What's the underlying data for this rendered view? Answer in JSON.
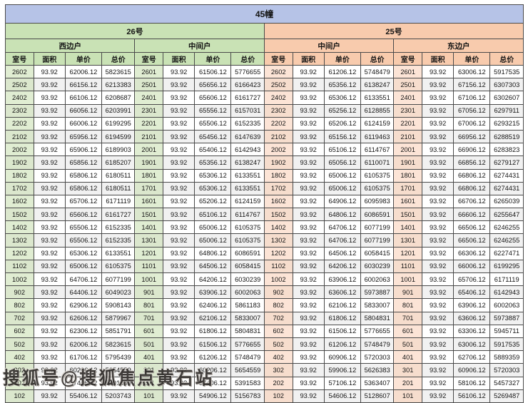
{
  "title": "45幢",
  "watermark": {
    "text": "搜狐号@搜狐焦点黄石站"
  },
  "buildings": [
    {
      "label": "26号",
      "theme": "green"
    },
    {
      "label": "25号",
      "theme": "orange"
    }
  ],
  "sides": [
    {
      "label": "西边户",
      "theme": "green"
    },
    {
      "label": "中间户",
      "theme": "green"
    },
    {
      "label": "中间户",
      "theme": "orange"
    },
    {
      "label": "东边户",
      "theme": "orange"
    }
  ],
  "columns": [
    "室号",
    "面积",
    "单价",
    "总价"
  ],
  "colors": {
    "title_bg": "#b6c3e7",
    "green_header": "#c9e2b5",
    "green_room": "#e0edd2",
    "orange_header": "#f8cbad",
    "orange_room": "#fce4d6",
    "stripe": "#f1f1f1",
    "border": "#4a4a4a"
  },
  "rows": [
    [
      "2602",
      "93.92",
      "62006.12",
      "5823615",
      "2601",
      "93.92",
      "61506.12",
      "5776655",
      "2602",
      "93.92",
      "61206.12",
      "5748479",
      "2601",
      "93.92",
      "63006.12",
      "5917535"
    ],
    [
      "2502",
      "93.92",
      "66156.12",
      "6213383",
      "2501",
      "93.92",
      "65656.12",
      "6166423",
      "2502",
      "93.92",
      "65356.12",
      "6138247",
      "2501",
      "93.92",
      "67156.12",
      "6307303"
    ],
    [
      "2402",
      "93.92",
      "66106.12",
      "6208687",
      "2401",
      "93.92",
      "65606.12",
      "6161727",
      "2402",
      "93.92",
      "65306.12",
      "6133551",
      "2401",
      "93.92",
      "67106.12",
      "6302607"
    ],
    [
      "2302",
      "93.92",
      "66056.12",
      "6203991",
      "2301",
      "93.92",
      "65556.12",
      "6157031",
      "2302",
      "93.92",
      "65256.12",
      "6128855",
      "2301",
      "93.92",
      "67056.12",
      "6297911"
    ],
    [
      "2202",
      "93.92",
      "66006.12",
      "6199295",
      "2201",
      "93.92",
      "65506.12",
      "6152335",
      "2202",
      "93.92",
      "65206.12",
      "6124159",
      "2201",
      "93.92",
      "67006.12",
      "6293215"
    ],
    [
      "2102",
      "93.92",
      "65956.12",
      "6194599",
      "2101",
      "93.92",
      "65456.12",
      "6147639",
      "2102",
      "93.92",
      "65156.12",
      "6119463",
      "2101",
      "93.92",
      "66956.12",
      "6288519"
    ],
    [
      "2002",
      "93.92",
      "65906.12",
      "6189903",
      "2001",
      "93.92",
      "65406.12",
      "6142943",
      "2002",
      "93.92",
      "65106.12",
      "6114767",
      "2001",
      "93.92",
      "66906.12",
      "6283823"
    ],
    [
      "1902",
      "93.92",
      "65856.12",
      "6185207",
      "1901",
      "93.92",
      "65356.12",
      "6138247",
      "1902",
      "93.92",
      "65056.12",
      "6110071",
      "1901",
      "93.92",
      "66856.12",
      "6279127"
    ],
    [
      "1802",
      "93.92",
      "65806.12",
      "6180511",
      "1801",
      "93.92",
      "65306.12",
      "6133551",
      "1802",
      "93.92",
      "65006.12",
      "6105375",
      "1801",
      "93.92",
      "66806.12",
      "6274431"
    ],
    [
      "1702",
      "93.92",
      "65806.12",
      "6180511",
      "1701",
      "93.92",
      "65306.12",
      "6133551",
      "1702",
      "93.92",
      "65006.12",
      "6105375",
      "1701",
      "93.92",
      "66806.12",
      "6274431"
    ],
    [
      "1602",
      "93.92",
      "65706.12",
      "6171119",
      "1601",
      "93.92",
      "65206.12",
      "6124159",
      "1602",
      "93.92",
      "64906.12",
      "6095983",
      "1601",
      "93.92",
      "66706.12",
      "6265039"
    ],
    [
      "1502",
      "93.92",
      "65606.12",
      "6161727",
      "1501",
      "93.92",
      "65106.12",
      "6114767",
      "1502",
      "93.92",
      "64806.12",
      "6086591",
      "1501",
      "93.92",
      "66606.12",
      "6255647"
    ],
    [
      "1402",
      "93.92",
      "65506.12",
      "6152335",
      "1401",
      "93.92",
      "65006.12",
      "6105375",
      "1402",
      "93.92",
      "64706.12",
      "6077199",
      "1401",
      "93.92",
      "66506.12",
      "6246255"
    ],
    [
      "1302",
      "93.92",
      "65506.12",
      "6152335",
      "1301",
      "93.92",
      "65006.12",
      "6105375",
      "1302",
      "93.92",
      "64706.12",
      "6077199",
      "1301",
      "93.92",
      "66506.12",
      "6246255"
    ],
    [
      "1202",
      "93.92",
      "65306.12",
      "6133551",
      "1201",
      "93.92",
      "64806.12",
      "6086591",
      "1202",
      "93.92",
      "64506.12",
      "6058415",
      "1201",
      "93.92",
      "66306.12",
      "6227471"
    ],
    [
      "1102",
      "93.92",
      "65006.12",
      "6105375",
      "1101",
      "93.92",
      "64506.12",
      "6058415",
      "1102",
      "93.92",
      "64206.12",
      "6030239",
      "1101",
      "93.92",
      "66006.12",
      "6199295"
    ],
    [
      "1002",
      "93.92",
      "64706.12",
      "6077199",
      "1001",
      "93.92",
      "64206.12",
      "6030239",
      "1002",
      "93.92",
      "63906.12",
      "6002063",
      "1001",
      "93.92",
      "65706.12",
      "6171119"
    ],
    [
      "902",
      "93.92",
      "64406.12",
      "6049023",
      "901",
      "93.92",
      "63906.12",
      "6002063",
      "902",
      "93.92",
      "63606.12",
      "5973887",
      "901",
      "93.92",
      "65406.12",
      "6142943"
    ],
    [
      "802",
      "93.92",
      "62906.12",
      "5908143",
      "801",
      "93.92",
      "62406.12",
      "5861183",
      "802",
      "93.92",
      "62106.12",
      "5833007",
      "801",
      "93.92",
      "63906.12",
      "6002063"
    ],
    [
      "702",
      "93.92",
      "62606.12",
      "5879967",
      "701",
      "93.92",
      "62106.12",
      "5833007",
      "702",
      "93.92",
      "61806.12",
      "5804831",
      "701",
      "93.92",
      "63606.12",
      "5973887"
    ],
    [
      "602",
      "93.92",
      "62306.12",
      "5851791",
      "601",
      "93.92",
      "61806.12",
      "5804831",
      "602",
      "93.92",
      "61506.12",
      "5776655",
      "601",
      "93.92",
      "63306.12",
      "5945711"
    ],
    [
      "502",
      "93.92",
      "62006.12",
      "5823615",
      "501",
      "93.92",
      "61506.12",
      "5776655",
      "502",
      "93.92",
      "61206.12",
      "5748479",
      "501",
      "93.92",
      "63006.12",
      "5917535"
    ],
    [
      "402",
      "93.92",
      "61706.12",
      "5795439",
      "401",
      "93.92",
      "61206.12",
      "5748479",
      "402",
      "93.92",
      "60906.12",
      "5720303",
      "401",
      "93.92",
      "62706.12",
      "5889359"
    ],
    [
      "302",
      "93.92",
      "60206.12",
      "5654559",
      "301",
      "93.92",
      "60206.12",
      "5654559",
      "302",
      "93.92",
      "59906.12",
      "5626383",
      "301",
      "93.92",
      "60906.12",
      "5720303"
    ],
    [
      "202",
      "93.92",
      "57406.12",
      "5391583",
      "201",
      "93.92",
      "57406.12",
      "5391583",
      "202",
      "93.92",
      "57106.12",
      "5363407",
      "201",
      "93.92",
      "58106.12",
      "5457327"
    ],
    [
      "102",
      "93.92",
      "55406.12",
      "5203743",
      "101",
      "93.92",
      "54906.12",
      "5156783",
      "102",
      "93.92",
      "54606.12",
      "5128607",
      "101",
      "93.92",
      "56106.12",
      "5269487"
    ]
  ]
}
